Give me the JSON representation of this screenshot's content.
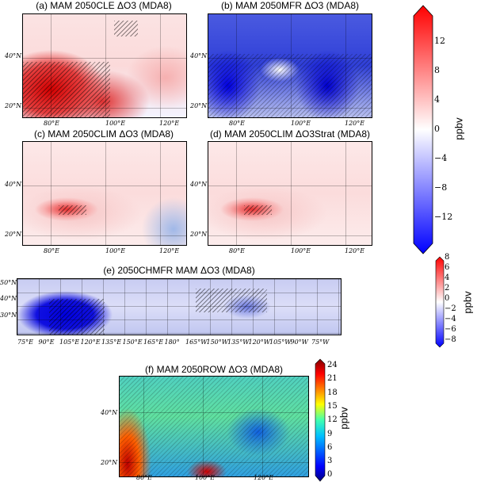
{
  "panels": [
    {
      "title": "(a) MAM 2050CLE ΔO3 (MDA8)",
      "lat": [
        "40°N",
        "20°N"
      ],
      "lon": [
        "80°E",
        "100°E",
        "120°E"
      ]
    },
    {
      "title": "(b) MAM 2050MFR ΔO3 (MDA8)",
      "lat": [
        "40°N",
        "20°N"
      ],
      "lon": [
        "80°E",
        "100°E",
        "120°E"
      ]
    },
    {
      "title": "(c) MAM 2050CLIM ΔO3 (MDA8)",
      "lat": [
        "40°N",
        "20°N"
      ],
      "lon": [
        "80°E",
        "100°E",
        "120°E"
      ]
    },
    {
      "title": "(d) MAM 2050CLIM ΔO3Strat (MDA8)",
      "lat": [
        "40°N",
        "20°N"
      ],
      "lon": [
        "80°E",
        "100°E",
        "120°E"
      ]
    },
    {
      "title": "(e) 2050CHMFR MAM ΔO3 (MDA8)",
      "lat": [
        "50°N",
        "40°N",
        "30°N"
      ],
      "lon": [
        "75°E",
        "90°E",
        "105°E",
        "120°E",
        "135°E",
        "150°E",
        "165°E",
        "180°",
        "165°W",
        "150°W",
        "135°W",
        "120°W",
        "105°W",
        "90°W",
        "75°W"
      ]
    },
    {
      "title": "(f) MAM 2050ROW ΔO3 (MDA8)",
      "lat": [
        "40°N",
        "20°N"
      ],
      "lon": [
        "80°E",
        "100°E",
        "120°E"
      ]
    }
  ],
  "colorbars": [
    {
      "unit": "ppbv",
      "ticks": [
        "12",
        "8",
        "4",
        "0",
        "−4",
        "−8",
        "−12"
      ],
      "colormap": "bwr",
      "extend": "both"
    },
    {
      "unit": "ppbv",
      "ticks": [
        "8",
        "6",
        "4",
        "2",
        "0",
        "−2",
        "−4",
        "−6",
        "−8"
      ],
      "colormap": "bwr",
      "extend": "both"
    },
    {
      "unit": "ppbv",
      "ticks": [
        "24",
        "21",
        "18",
        "15",
        "12",
        "9",
        "6",
        "3",
        "0"
      ],
      "colormap": "jet",
      "extend": "both"
    }
  ],
  "colors": {
    "positive": "#ff0000",
    "negative": "#0000ff",
    "zero": "#ffffff"
  }
}
